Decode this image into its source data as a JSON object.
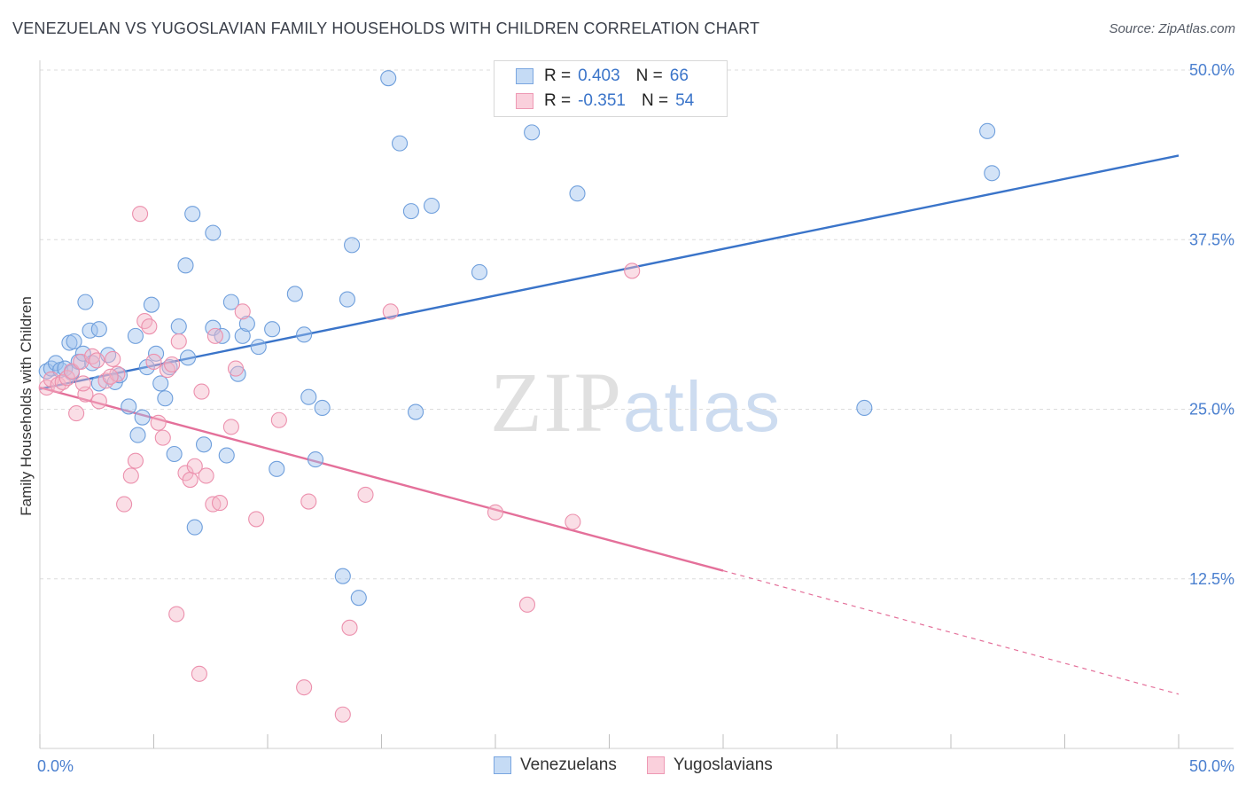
{
  "title": "VENEZUELAN VS YUGOSLAVIAN FAMILY HOUSEHOLDS WITH CHILDREN CORRELATION CHART",
  "source": "Source: ZipAtlas.com",
  "watermark": {
    "zip": "ZIP",
    "atlas": "atlas"
  },
  "legend": {
    "rows": [
      {
        "r_label": "R =",
        "r_value": "0.403",
        "n_label": "N =",
        "n_value": "66",
        "color": "#9ec2ee"
      },
      {
        "r_label": "R =",
        "r_value": "-0.351",
        "n_label": "N =",
        "n_value": "54",
        "color": "#f4b6c8"
      }
    ]
  },
  "bottom_legend": [
    "Venezuelans",
    "Yugoslavians"
  ],
  "chart_data": {
    "type": "scatter",
    "title": "VENEZUELAN VS YUGOSLAVIAN FAMILY HOUSEHOLDS WITH CHILDREN CORRELATION CHART",
    "xlabel": "",
    "ylabel": "Family Households with Children",
    "xlim": [
      0,
      50
    ],
    "ylim": [
      0,
      50
    ],
    "x_tick_labels": [
      "0.0%",
      "50.0%"
    ],
    "y_ticks": [
      12.5,
      25.0,
      37.5,
      50.0
    ],
    "y_tick_labels": [
      "12.5%",
      "25.0%",
      "37.5%",
      "50.0%"
    ],
    "grid": true,
    "legend_position": "top-center",
    "series": [
      {
        "name": "Venezuelans",
        "color": "#9ec2ee",
        "line_color": "#3a74c9",
        "trend": {
          "x0": 0,
          "y0": 26.5,
          "x1": 50,
          "y1": 43.7
        },
        "points": [
          [
            0.3,
            27.8
          ],
          [
            0.5,
            28.0
          ],
          [
            0.7,
            28.4
          ],
          [
            0.9,
            27.9
          ],
          [
            1.1,
            28.0
          ],
          [
            1.3,
            29.9
          ],
          [
            1.4,
            27.7
          ],
          [
            1.5,
            30.0
          ],
          [
            1.7,
            28.5
          ],
          [
            1.9,
            29.1
          ],
          [
            2.0,
            32.9
          ],
          [
            2.2,
            30.8
          ],
          [
            2.3,
            28.4
          ],
          [
            2.6,
            26.9
          ],
          [
            2.6,
            30.9
          ],
          [
            3.0,
            29.0
          ],
          [
            3.3,
            27.0
          ],
          [
            3.5,
            27.5
          ],
          [
            3.9,
            25.2
          ],
          [
            4.2,
            30.4
          ],
          [
            4.3,
            23.1
          ],
          [
            4.5,
            24.4
          ],
          [
            4.7,
            28.1
          ],
          [
            4.9,
            32.7
          ],
          [
            5.1,
            29.1
          ],
          [
            5.3,
            26.9
          ],
          [
            5.5,
            25.8
          ],
          [
            5.7,
            28.1
          ],
          [
            5.9,
            21.7
          ],
          [
            6.1,
            31.1
          ],
          [
            6.4,
            35.6
          ],
          [
            6.5,
            28.8
          ],
          [
            6.7,
            39.4
          ],
          [
            6.8,
            16.3
          ],
          [
            7.2,
            22.4
          ],
          [
            7.6,
            38.0
          ],
          [
            7.6,
            31.0
          ],
          [
            8.0,
            30.4
          ],
          [
            8.2,
            21.6
          ],
          [
            8.4,
            32.9
          ],
          [
            8.7,
            27.6
          ],
          [
            8.9,
            30.4
          ],
          [
            9.1,
            31.3
          ],
          [
            9.6,
            29.6
          ],
          [
            10.2,
            30.9
          ],
          [
            10.4,
            20.6
          ],
          [
            11.2,
            33.5
          ],
          [
            11.6,
            30.5
          ],
          [
            11.8,
            25.9
          ],
          [
            12.1,
            21.3
          ],
          [
            12.4,
            25.1
          ],
          [
            13.3,
            12.7
          ],
          [
            13.5,
            33.1
          ],
          [
            13.7,
            37.1
          ],
          [
            14.0,
            11.1
          ],
          [
            15.3,
            49.4
          ],
          [
            15.8,
            44.6
          ],
          [
            16.3,
            39.6
          ],
          [
            16.5,
            24.8
          ],
          [
            17.2,
            40.0
          ],
          [
            19.3,
            35.1
          ],
          [
            21.6,
            45.4
          ],
          [
            23.6,
            40.9
          ],
          [
            36.2,
            25.1
          ],
          [
            41.6,
            45.5
          ],
          [
            41.8,
            42.4
          ]
        ]
      },
      {
        "name": "Yugoslavians",
        "color": "#f4b6c8",
        "line_color": "#e4709a",
        "trend": {
          "x0": 0,
          "y0": 26.6,
          "x1": 30,
          "y1": 13.1,
          "dash_x1": 50,
          "dash_y1": 4.0
        },
        "points": [
          [
            0.3,
            26.6
          ],
          [
            0.5,
            27.2
          ],
          [
            0.8,
            26.8
          ],
          [
            1.0,
            27.0
          ],
          [
            1.2,
            27.3
          ],
          [
            1.4,
            27.8
          ],
          [
            1.6,
            24.7
          ],
          [
            1.8,
            28.5
          ],
          [
            2.0,
            26.1
          ],
          [
            2.3,
            28.9
          ],
          [
            2.6,
            25.6
          ],
          [
            2.9,
            27.1
          ],
          [
            3.2,
            28.7
          ],
          [
            3.4,
            27.6
          ],
          [
            3.7,
            18.0
          ],
          [
            4.0,
            20.1
          ],
          [
            4.2,
            21.2
          ],
          [
            4.4,
            39.4
          ],
          [
            4.6,
            31.5
          ],
          [
            4.8,
            31.1
          ],
          [
            5.0,
            28.5
          ],
          [
            5.2,
            24.0
          ],
          [
            5.4,
            22.9
          ],
          [
            5.6,
            27.9
          ],
          [
            6.0,
            9.9
          ],
          [
            6.1,
            30.0
          ],
          [
            6.4,
            20.3
          ],
          [
            6.6,
            19.8
          ],
          [
            6.8,
            20.8
          ],
          [
            7.0,
            5.5
          ],
          [
            7.1,
            26.3
          ],
          [
            7.3,
            20.1
          ],
          [
            7.6,
            18.0
          ],
          [
            7.7,
            30.4
          ],
          [
            8.4,
            23.7
          ],
          [
            8.6,
            28.0
          ],
          [
            8.9,
            32.2
          ],
          [
            9.5,
            16.9
          ],
          [
            10.5,
            24.2
          ],
          [
            11.6,
            4.5
          ],
          [
            11.8,
            18.2
          ],
          [
            13.3,
            2.5
          ],
          [
            13.6,
            8.9
          ],
          [
            14.3,
            18.7
          ],
          [
            15.4,
            32.2
          ],
          [
            20.0,
            17.4
          ],
          [
            21.4,
            10.6
          ],
          [
            23.4,
            16.7
          ],
          [
            26.0,
            35.2
          ],
          [
            3.1,
            27.4
          ],
          [
            2.5,
            28.6
          ],
          [
            1.9,
            26.9
          ],
          [
            5.8,
            28.3
          ],
          [
            7.9,
            18.1
          ]
        ]
      }
    ]
  }
}
